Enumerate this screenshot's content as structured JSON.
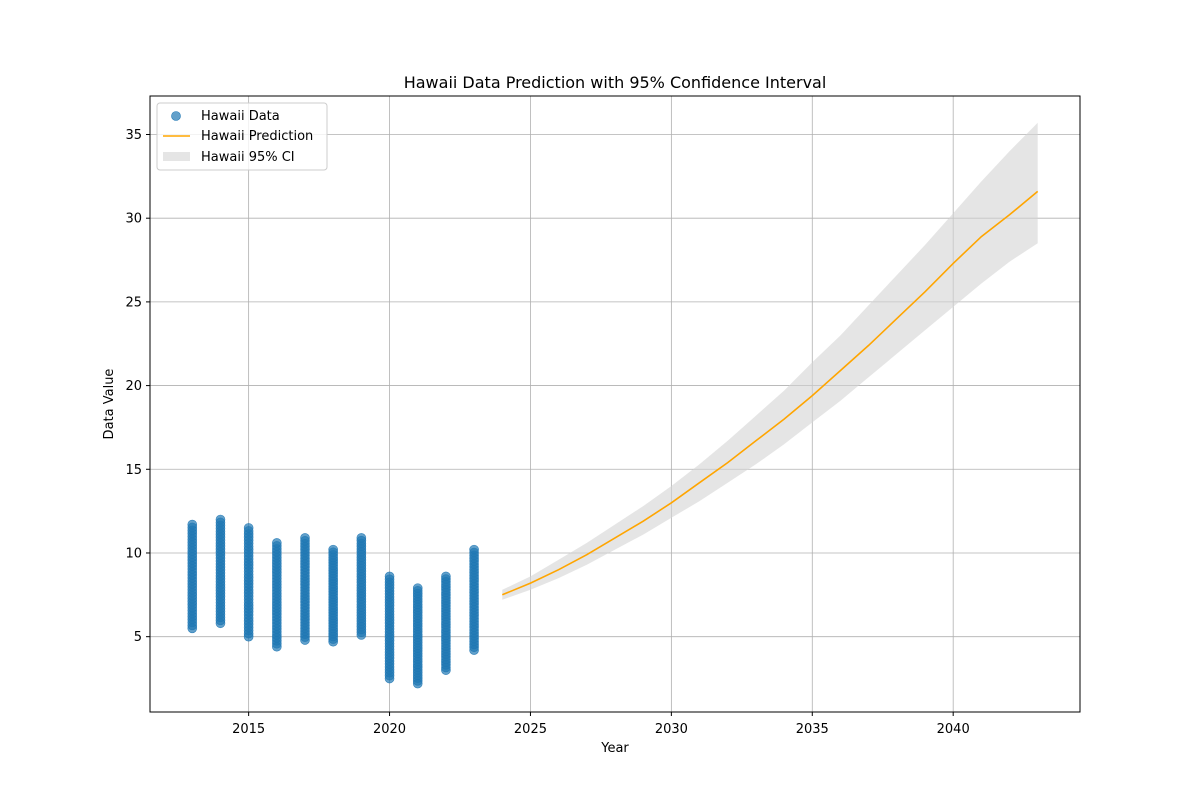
{
  "chart_data": {
    "type": "scatter",
    "title": "Hawaii Data Prediction with 95% Confidence Interval",
    "xlabel": "Year",
    "ylabel": "Data Value",
    "xlim": [
      2011.5,
      2044.5
    ],
    "ylim": [
      0.5,
      37.3
    ],
    "xticks": [
      2015,
      2020,
      2025,
      2030,
      2035,
      2040
    ],
    "yticks": [
      5,
      10,
      15,
      20,
      25,
      30,
      35
    ],
    "grid": true,
    "legend_position": "upper-left",
    "colors": {
      "data": "#1f77b4",
      "prediction": "#ffa500",
      "ci": "#d3d3d3"
    },
    "series": [
      {
        "name": "Hawaii Data",
        "kind": "scatter",
        "groups": [
          {
            "x": 2013,
            "min": 5.5,
            "max": 11.7
          },
          {
            "x": 2014,
            "min": 5.8,
            "max": 12.0
          },
          {
            "x": 2015,
            "min": 5.0,
            "max": 11.5
          },
          {
            "x": 2016,
            "min": 4.4,
            "max": 10.6
          },
          {
            "x": 2017,
            "min": 4.8,
            "max": 10.9
          },
          {
            "x": 2018,
            "min": 4.7,
            "max": 10.2
          },
          {
            "x": 2019,
            "min": 5.1,
            "max": 10.9
          },
          {
            "x": 2020,
            "min": 2.5,
            "max": 8.6
          },
          {
            "x": 2021,
            "min": 2.2,
            "max": 7.9
          },
          {
            "x": 2022,
            "min": 3.0,
            "max": 8.6
          },
          {
            "x": 2023,
            "min": 4.2,
            "max": 10.2
          }
        ]
      },
      {
        "name": "Hawaii Prediction",
        "kind": "line",
        "x": [
          2024,
          2025,
          2026,
          2027,
          2028,
          2029,
          2030,
          2031,
          2032,
          2033,
          2034,
          2035,
          2036,
          2037,
          2038,
          2039,
          2040,
          2041,
          2042,
          2043
        ],
        "y": [
          7.5,
          8.2,
          9.0,
          9.9,
          10.9,
          11.9,
          13.0,
          14.2,
          15.4,
          16.7,
          18.0,
          19.4,
          20.9,
          22.4,
          24.0,
          25.6,
          27.3,
          28.9,
          30.2,
          31.6
        ]
      },
      {
        "name": "Hawaii 95% CI",
        "kind": "band",
        "x": [
          2024,
          2025,
          2026,
          2027,
          2028,
          2029,
          2030,
          2031,
          2032,
          2033,
          2034,
          2035,
          2036,
          2037,
          2038,
          2039,
          2040,
          2041,
          2042,
          2043
        ],
        "lower": [
          7.2,
          7.8,
          8.5,
          9.3,
          10.2,
          11.1,
          12.1,
          13.1,
          14.2,
          15.3,
          16.5,
          17.8,
          19.1,
          20.5,
          21.9,
          23.3,
          24.7,
          26.1,
          27.4,
          28.5
        ],
        "upper": [
          7.8,
          8.6,
          9.6,
          10.6,
          11.7,
          12.8,
          14.0,
          15.3,
          16.7,
          18.2,
          19.7,
          21.4,
          23.0,
          24.8,
          26.6,
          28.4,
          30.3,
          32.2,
          34.0,
          35.7
        ]
      }
    ]
  }
}
